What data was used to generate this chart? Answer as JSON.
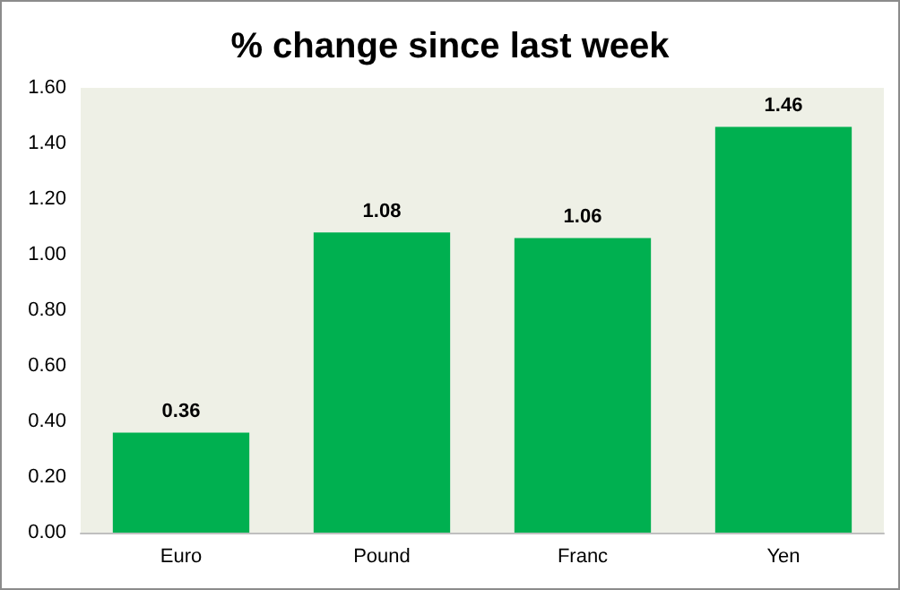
{
  "chart_data": {
    "type": "bar",
    "title": "% change since last week",
    "categories": [
      "Euro",
      "Pound",
      "Franc",
      "Yen"
    ],
    "values": [
      0.36,
      1.08,
      1.06,
      1.46
    ],
    "color": "#00b050",
    "data_labels": true,
    "ylim": [
      0,
      1.6
    ],
    "yticks": [
      {
        "value": 0,
        "label": "0.00"
      },
      {
        "value": 0.2,
        "label": "0.20"
      },
      {
        "value": 0.4,
        "label": "0.40"
      },
      {
        "value": 0.6,
        "label": "0.60"
      },
      {
        "value": 0.8,
        "label": "0.80"
      },
      {
        "value": 1.0,
        "label": "1.00"
      },
      {
        "value": 1.2,
        "label": "1.20"
      },
      {
        "value": 1.4,
        "label": "1.40"
      },
      {
        "value": 1.6,
        "label": "1.60"
      }
    ],
    "grid": false
  }
}
